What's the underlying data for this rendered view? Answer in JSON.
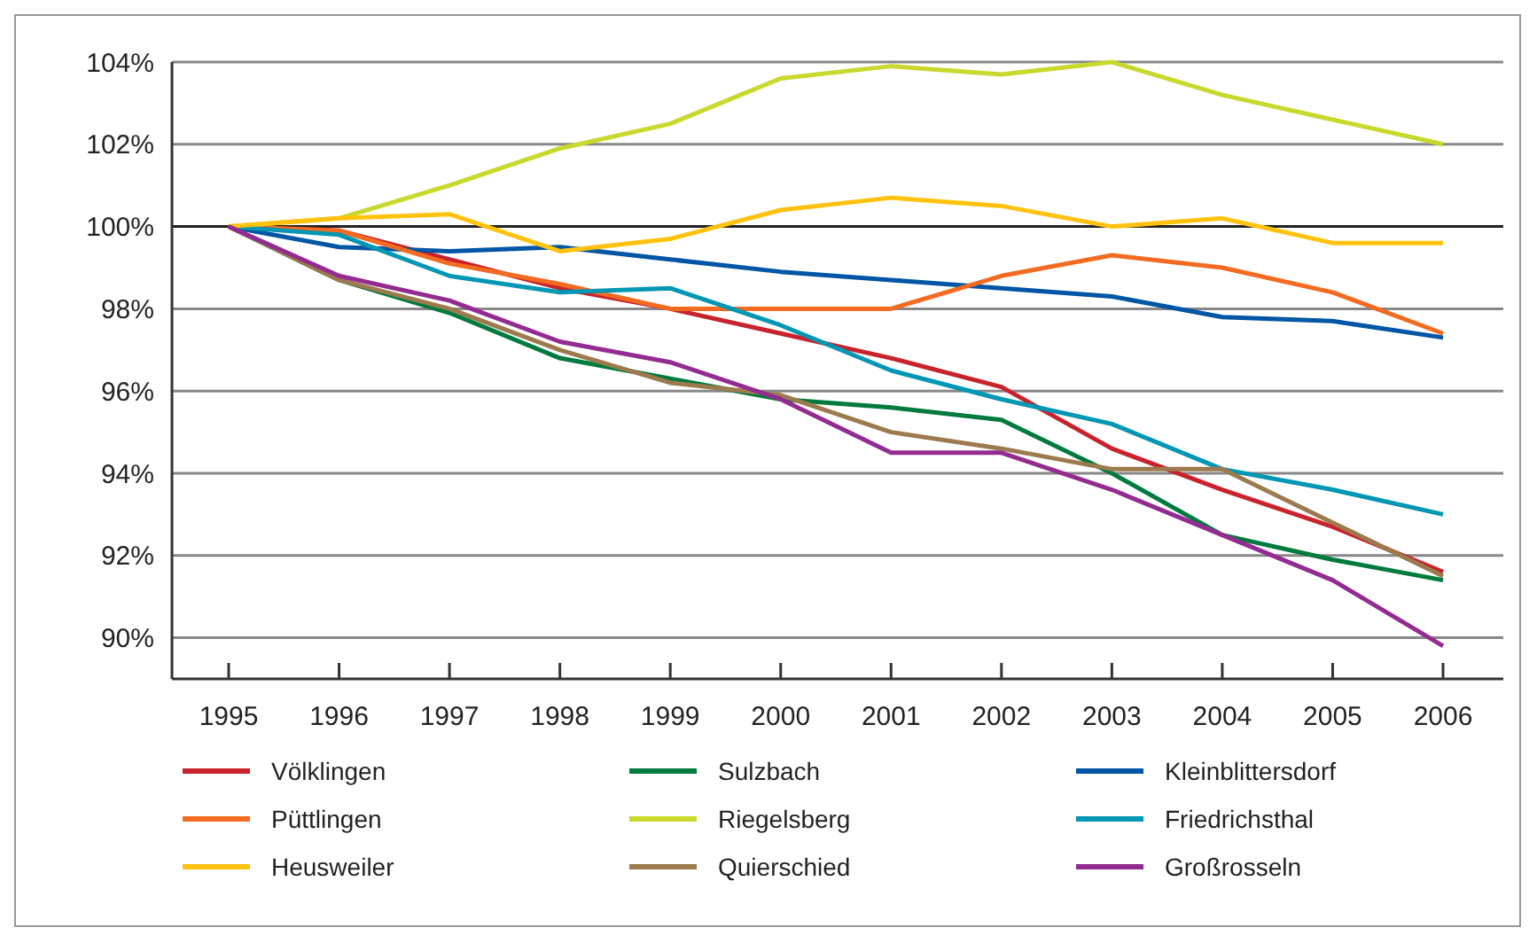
{
  "chart_data": {
    "type": "line",
    "categories": [
      "1995",
      "1996",
      "1997",
      "1998",
      "1999",
      "2000",
      "2001",
      "2002",
      "2003",
      "2004",
      "2005",
      "2006"
    ],
    "ylim": [
      89,
      104
    ],
    "yticks": [
      {
        "value": 90,
        "label": "90%"
      },
      {
        "value": 92,
        "label": "92%"
      },
      {
        "value": 94,
        "label": "94%"
      },
      {
        "value": 96,
        "label": "96%"
      },
      {
        "value": 98,
        "label": "98%"
      },
      {
        "value": 100,
        "label": "100%"
      },
      {
        "value": 102,
        "label": "102%"
      },
      {
        "value": 104,
        "label": "104%"
      }
    ],
    "grid": "y",
    "ref_lines": [
      {
        "axis": "y",
        "value": 100,
        "color": "#222222"
      }
    ],
    "legend": "bottom",
    "marker": "none",
    "line_style": "solid",
    "series": [
      {
        "name": "Völklingen",
        "color": "#c8232c",
        "values": [
          100,
          99.9,
          99.2,
          98.5,
          98.0,
          97.4,
          96.8,
          96.1,
          94.6,
          93.6,
          92.7,
          91.6
        ]
      },
      {
        "name": "Sulzbach",
        "color": "#007a3d",
        "values": [
          100,
          98.7,
          97.9,
          96.8,
          96.3,
          95.8,
          95.6,
          95.3,
          94.0,
          92.5,
          91.9,
          91.4
        ]
      },
      {
        "name": "Kleinblittersdorf",
        "color": "#0055a5",
        "values": [
          100,
          99.5,
          99.4,
          99.5,
          99.2,
          98.9,
          98.7,
          98.5,
          98.3,
          97.8,
          97.7,
          97.3
        ]
      },
      {
        "name": "Püttlingen",
        "color": "#f26b21",
        "values": [
          100,
          99.9,
          99.1,
          98.6,
          98.0,
          98.0,
          98.0,
          98.8,
          99.3,
          99.0,
          98.4,
          97.4
        ]
      },
      {
        "name": "Riegelsberg",
        "color": "#c8d82c",
        "values": [
          100,
          100.2,
          101.0,
          101.9,
          102.5,
          103.6,
          103.9,
          103.7,
          104.0,
          103.2,
          102.6,
          102.0
        ]
      },
      {
        "name": "Friedrichsthal",
        "color": "#0096b4",
        "values": [
          100,
          99.8,
          98.8,
          98.4,
          98.5,
          97.6,
          96.5,
          95.8,
          95.2,
          94.1,
          93.6,
          93.0
        ]
      },
      {
        "name": "Heusweiler",
        "color": "#ffc20e",
        "values": [
          100,
          100.2,
          100.3,
          99.4,
          99.7,
          100.4,
          100.7,
          100.5,
          100.0,
          100.2,
          99.6,
          99.6
        ]
      },
      {
        "name": "Quierschied",
        "color": "#9c7a4e",
        "values": [
          100,
          98.7,
          98.0,
          97.0,
          96.2,
          95.9,
          95.0,
          94.6,
          94.1,
          94.1,
          92.8,
          91.5
        ]
      },
      {
        "name": "Großrosseln",
        "color": "#932b91",
        "values": [
          100,
          98.8,
          98.2,
          97.2,
          96.7,
          95.8,
          94.5,
          94.5,
          93.6,
          92.5,
          91.4,
          89.8
        ]
      }
    ]
  }
}
